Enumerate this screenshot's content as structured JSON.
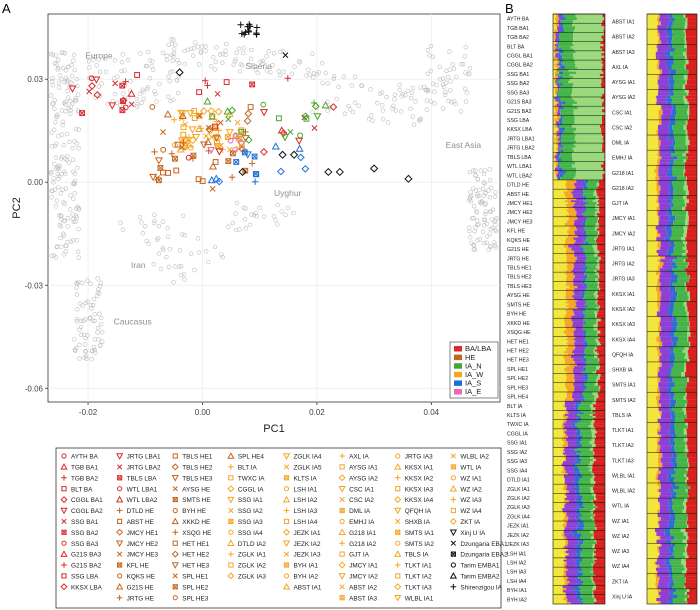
{
  "panel_a_label": "A",
  "panel_b_label": "B",
  "chart_data": [
    {
      "type": "scatter",
      "title": "",
      "xlabel": "PC1",
      "ylabel": "PC2",
      "xlim": [
        -0.027,
        0.052
      ],
      "ylim": [
        -0.064,
        0.049
      ],
      "xticks": [
        -0.02,
        0.0,
        0.02,
        0.04
      ],
      "xtick_labels": [
        "-0.02",
        "0.00",
        "0.02",
        "0.04"
      ],
      "yticks": [
        0.03,
        0.0,
        -0.03,
        -0.06
      ],
      "ytick_labels": [
        "0.03",
        "0.00",
        "-0.03",
        "-0.06"
      ],
      "grid": true,
      "region_labels": [
        {
          "text": "Europe",
          "x": -0.0205,
          "y": 0.036
        },
        {
          "text": "Siberia",
          "x": 0.0075,
          "y": 0.033
        },
        {
          "text": "East Asia",
          "x": 0.0425,
          "y": 0.01
        },
        {
          "text": "Uyghur",
          "x": 0.0125,
          "y": -0.004
        },
        {
          "text": "Iran",
          "x": -0.0125,
          "y": -0.025
        },
        {
          "text": "Caucasus",
          "x": -0.0155,
          "y": -0.0415
        }
      ],
      "period_legend": {
        "placement": "bottom-right",
        "entries": [
          {
            "name": "BA/LBA",
            "color": "#d92b2b"
          },
          {
            "name": "HE",
            "color": "#c8651d"
          },
          {
            "name": "IA_N",
            "color": "#4aa62d"
          },
          {
            "name": "IA_W",
            "color": "#f5a623"
          },
          {
            "name": "IA_S",
            "color": "#1f6fd6"
          },
          {
            "name": "IA_E",
            "color": "#e46fb0"
          }
        ]
      },
      "population_legend": [
        [
          "AYTH_BA",
          "TGB_BA1",
          "TGB_BA2",
          "BLT_BA",
          "CGGL_BA1",
          "CGGL_BA2",
          "SSG_BA1",
          "SSG_BA2",
          "SSG_BA3",
          "G21S_BA3",
          "G21S_BA2",
          "SSG_LBA",
          "KKSX_LBA"
        ],
        [
          "JRTG_LBA1",
          "JRTG_LBA2",
          "TBLS_LBA",
          "WTL_LBA1",
          "WTL_LBA2",
          "DTLD_HE",
          "ABST_HE",
          "JMCY_HE1",
          "JMCY_HE2",
          "JMCY_HE3",
          "KFL_HE",
          "KQKS_HE",
          "G21S_HE",
          "JRTG_HE"
        ],
        [
          "TBLS_HE1",
          "TBLS_HE2",
          "TBLS_HE3",
          "AYSG_HE",
          "SMTS_HE",
          "BYH_HE",
          "XKKD_HE",
          "XSQG_HE",
          "HET_HE1",
          "HET_HE2",
          "HET_HE3",
          "SPL_HE1",
          "SPL_HE2",
          "SPL_HE3"
        ],
        [
          "SPL_HE4",
          "BLT_IA",
          "TWXC_IA",
          "CGGL_IA",
          "SSG_IA1",
          "SSG_IA2",
          "SSG_IA3",
          "SSG_IA4",
          "DTLD_IA2",
          "ZGLK_IA1",
          "ZGLK_IA2",
          "ZGLK_IA3"
        ],
        [
          "ZGLK_IA4",
          "ZGLK_IA5",
          "KLTS_IA",
          "LSH_IA1",
          "LSH_IA2",
          "LSH_IA3",
          "LSH_IA4",
          "JEZK_IA1",
          "JEZK_IA2",
          "JEZK_IA3",
          "BYH_IA1",
          "BYH_IA2",
          "ABST_IA1"
        ],
        [
          "AXL_IA",
          "AYSG_IA1",
          "AYSG_IA2",
          "CSC_IA1",
          "CSC_IA2",
          "DML_IA",
          "EMHJ_IA",
          "G218_IA1",
          "G218_IA2",
          "GJT_IA",
          "JMCY_IA1",
          "JMCY_IA2",
          "ABST_IA2",
          "ABST_IA3"
        ],
        [
          "JRTG_IA3",
          "KKSX_IA1",
          "KKSX_IA2",
          "KKSX_IA3",
          "KKSX_IA4",
          "QFQH_IA",
          "SHXB_IA",
          "SMTS_IA1",
          "SMTS_IA2",
          "TBLS_IA",
          "TLKT_IA1",
          "TLKT_IA2",
          "TLKT_IA3",
          "WLBL_IA1"
        ],
        [
          "WLBL_IA2",
          "WTL_IA",
          "WZ_IA1",
          "WZ_IA2",
          "WZ_IA3",
          "WZ_IA4",
          "ZKT_IA",
          "Xinj_U_IA",
          "Dzungaria_EBA1",
          "Dzungaria_EBA2",
          "Tarim_EMBA1",
          "Tarim_EMBA2",
          "Shirenzigou_IA"
        ]
      ]
    },
    {
      "type": "bar",
      "title": "",
      "stacked": true,
      "orientation": "horizontal",
      "component_colors": [
        "#f2e63b",
        "#f5a623",
        "#8e3fd6",
        "#2f6bd3",
        "#45b549",
        "#9ad97b",
        "#d8201f"
      ],
      "left_column_labels": [
        "AYTH_BA",
        "TGB_BA1",
        "TGB_BA2",
        "BLT_BA",
        "CGGL_BA1",
        "CGGL_BA2",
        "SSG_BA1",
        "SSG_BA2",
        "SSG_BA3",
        "G21S_BA3",
        "G21S_BA2",
        "SSG_LBA",
        "KKSX_LBA",
        "JRTG_LBA1",
        "JRTG_LBA2",
        "TBLS_LBA",
        "WTL_LBA1",
        "WTL_LBA2",
        "DTLD_HE",
        "ABST_HE",
        "JMCY_HE1",
        "JMCY_HE2",
        "JMCY_HE3",
        "KFL_HE",
        "KQKS_HE",
        "G21S_HE",
        "JRTG_HE",
        "TBLS_HE1",
        "TBLS_HE2",
        "TBLS_HE3",
        "AYSG_HE",
        "SMTS_HE",
        "BYH_HE",
        "XKKD_HE",
        "XSQG_HE",
        "HET_HE1",
        "HET_HE2",
        "HET_HE3",
        "SPL_HE1",
        "SPL_HE2",
        "SPL_HE3",
        "SPL_HE4",
        "BLT_IA",
        "KLTS_IA",
        "TWXC_IA",
        "CGGL_IA",
        "SSG_IA1",
        "SSG_IA2",
        "SSG_IA3",
        "SSG_IA4",
        "DTLD_IA1",
        "ZGLK_IA1",
        "ZGLK_IA2",
        "ZGLK_IA3",
        "ZGLK_IA4",
        "JEZK_IA1",
        "JEZK_IA2",
        "JEZK_IA3",
        "LSH_IA1",
        "LSH_IA2",
        "LSH_IA3",
        "LSH_IA4",
        "BYH_IA1",
        "BYH_IA2"
      ],
      "right_column_labels": [
        "ABST_IA1",
        "ABST_IA2",
        "ABST_IA3",
        "AXL_IA",
        "AYSG_IA1",
        "AYSG_IA2",
        "CSC_IA1",
        "CSC_IA2",
        "DML_IA",
        "EMHJ_IA",
        "G218_IA1",
        "G218_IA2",
        "GJT_IA",
        "JMCY_IA1",
        "JMCY_IA2",
        "JRTG_IA1",
        "JRTG_IA2",
        "JRTG_IA3",
        "KKSX_IA1",
        "KKSX_IA2",
        "KKSX_IA3",
        "KKSX_IA4",
        "QFQH_IA",
        "SHXB_IA",
        "SMTS_IA1",
        "SMTS_IA2",
        "TBLS_IA",
        "TLKT_IA1",
        "TLKT_IA2",
        "TLKT_IA3",
        "WLBL_IA1",
        "WLBL_IA2",
        "WTL_IA",
        "WZ_IA1",
        "WZ_IA2",
        "WZ_IA3",
        "WZ_IA4",
        "ZKT_IA",
        "Xinj_U_IA"
      ]
    }
  ]
}
